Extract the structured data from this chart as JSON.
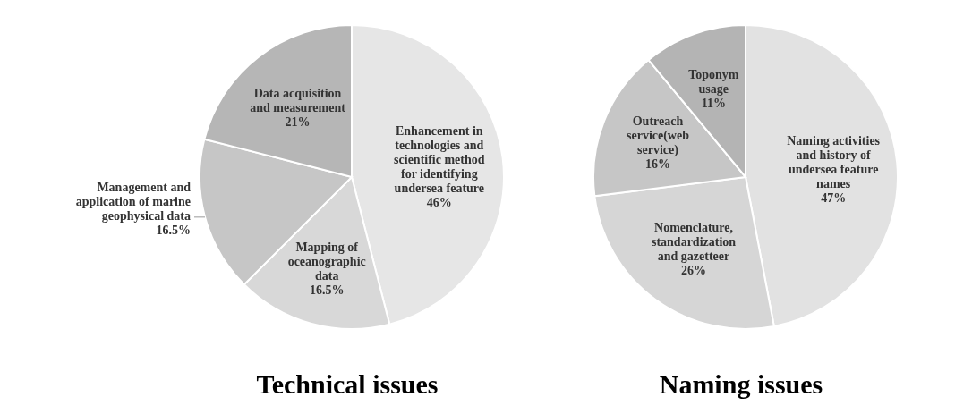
{
  "chart_data": [
    {
      "type": "pie",
      "title": "Technical issues",
      "categories": [
        "Enhancement in technologies and scientific method for identifying undersea feature",
        "Mapping of oceanographic data",
        "Management and application of marine geophysical data",
        "Data acquisition and measurement"
      ],
      "values": [
        46,
        16.5,
        16.5,
        21
      ],
      "colors": [
        "#e6e6e6",
        "#d8d8d8",
        "#c6c6c6",
        "#b6b6b6"
      ],
      "value_labels": [
        "46%",
        "16.5%",
        "16.5%",
        "21%"
      ]
    },
    {
      "type": "pie",
      "title": "Naming issues",
      "categories": [
        "Naming activities and history of undersea feature names",
        "Nomenclature, standardization and gazetteer",
        "Outreach service(web service)",
        "Toponym usage"
      ],
      "values": [
        47,
        26,
        16,
        11
      ],
      "colors": [
        "#e2e2e2",
        "#d6d6d6",
        "#c6c6c6",
        "#b4b4b4"
      ],
      "value_labels": [
        "47%",
        "26%",
        "16%",
        "11%"
      ]
    }
  ]
}
